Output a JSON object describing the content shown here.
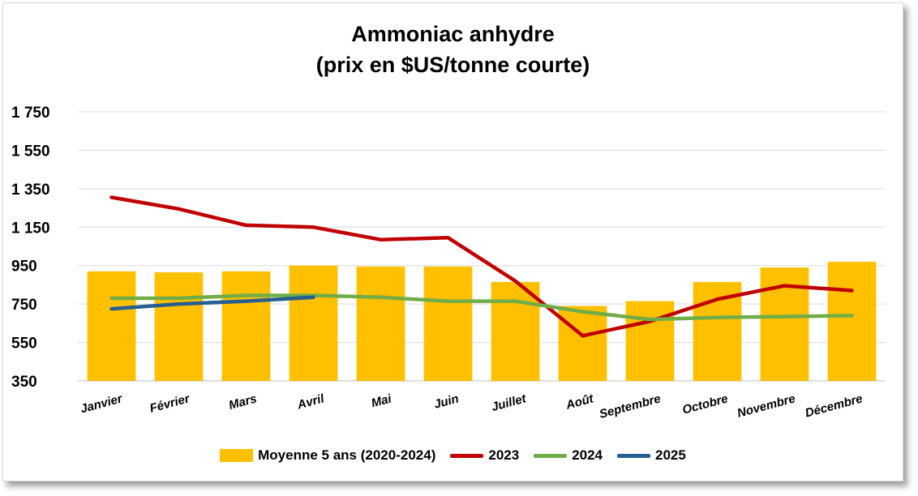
{
  "chart_data": {
    "type": "bar",
    "title_lines": [
      "Ammoniac anhydre",
      "(prix en $US/tonne courte)"
    ],
    "categories": [
      "Janvier",
      "Février",
      "Mars",
      "Avril",
      "Mai",
      "Juin",
      "Juillet",
      "Août",
      "Septembre",
      "Octobre",
      "Novembre",
      "Décembre"
    ],
    "ylim": [
      350,
      1750
    ],
    "yticks": [
      350,
      550,
      750,
      950,
      1150,
      1350,
      1550,
      1750
    ],
    "ytick_labels": [
      "350",
      "550",
      "750",
      "950",
      "1 150",
      "1 350",
      "1 550",
      "1 750"
    ],
    "grid": true,
    "legend_position": "bottom",
    "series": [
      {
        "name": "Moyenne 5 ans (2020-2024)",
        "kind": "bar",
        "color": "#ffc000",
        "values": [
          920,
          915,
          920,
          950,
          945,
          945,
          865,
          740,
          765,
          865,
          940,
          970
        ]
      },
      {
        "name": "2023",
        "kind": "line",
        "color": "#c00000",
        "values": [
          1305,
          1245,
          1160,
          1150,
          1085,
          1095,
          870,
          585,
          660,
          775,
          845,
          820
        ]
      },
      {
        "name": "2024",
        "kind": "line",
        "color": "#70ad47",
        "values": [
          780,
          780,
          795,
          795,
          785,
          765,
          765,
          710,
          670,
          680,
          685,
          690
        ]
      },
      {
        "name": "2025",
        "kind": "line",
        "color": "#255e91",
        "values": [
          725,
          750,
          765,
          785,
          null,
          null,
          null,
          null,
          null,
          null,
          null,
          null
        ]
      }
    ]
  }
}
